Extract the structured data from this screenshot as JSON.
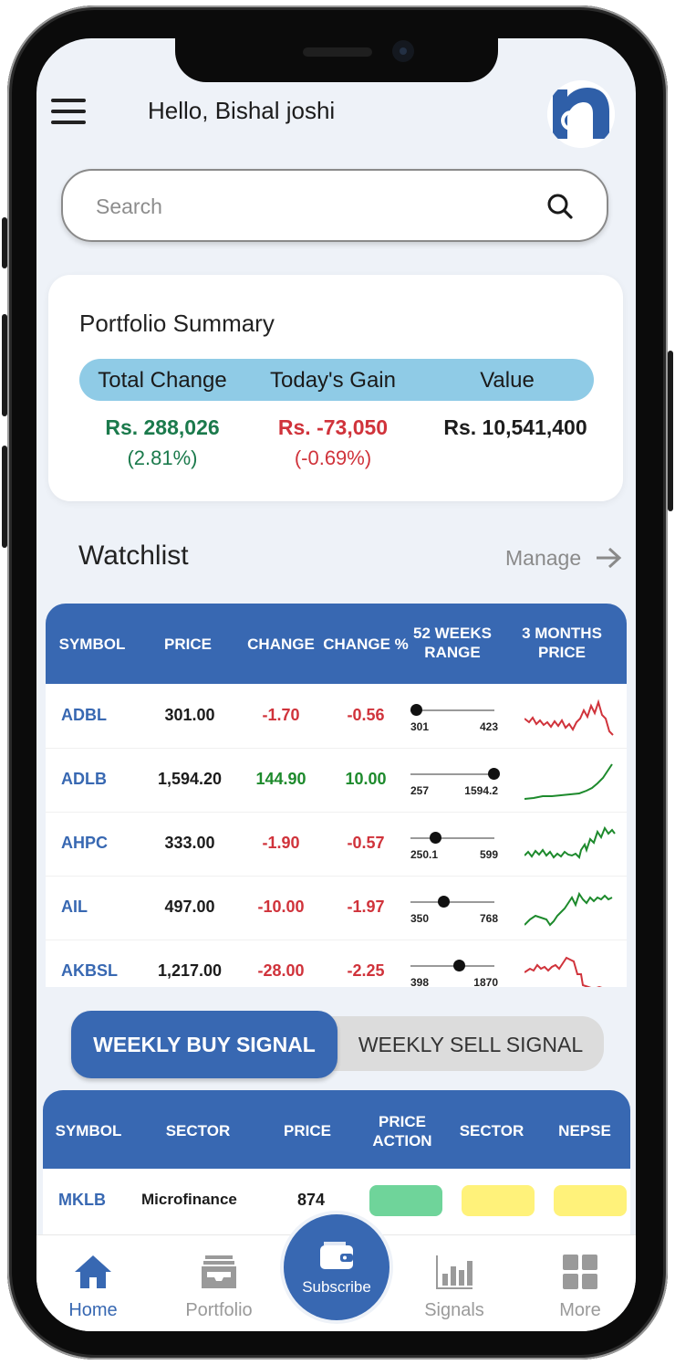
{
  "header": {
    "greeting": "Hello, Bishal joshi"
  },
  "search": {
    "placeholder": "Search"
  },
  "portfolio": {
    "title": "Portfolio Summary",
    "columns": [
      "Total Change",
      "Today's Gain",
      "Value"
    ],
    "total_change": {
      "value": "Rs. 288,026",
      "percent": "(2.81%)"
    },
    "todays_gain": {
      "value": "Rs. -73,050",
      "percent": "(-0.69%)"
    },
    "value": {
      "value": "Rs. 10,541,400"
    }
  },
  "watchlist": {
    "title": "Watchlist",
    "manage_label": "Manage",
    "headers": [
      "SYMBOL",
      "PRICE",
      "CHANGE",
      "CHANGE %",
      "52 WEEKS RANGE",
      "3 MONTHS PRICE"
    ],
    "rows": [
      {
        "symbol": "ADBL",
        "price": "301.00",
        "change": "-1.70",
        "change_pct": "-0.56",
        "low": "301",
        "high": "423",
        "trend": "down"
      },
      {
        "symbol": "ADLB",
        "price": "1,594.20",
        "change": "144.90",
        "change_pct": "10.00",
        "low": "257",
        "high": "1594.2",
        "trend": "up"
      },
      {
        "symbol": "AHPC",
        "price": "333.00",
        "change": "-1.90",
        "change_pct": "-0.57",
        "low": "250.1",
        "high": "599",
        "trend": "up"
      },
      {
        "symbol": "AIL",
        "price": "497.00",
        "change": "-10.00",
        "change_pct": "-1.97",
        "low": "350",
        "high": "768",
        "trend": "up"
      },
      {
        "symbol": "AKBSL",
        "price": "1,217.00",
        "change": "-28.00",
        "change_pct": "-2.25",
        "low": "398",
        "high": "1870",
        "trend": "down"
      }
    ]
  },
  "signals": {
    "tabs": [
      "WEEKLY BUY SIGNAL",
      "WEEKLY SELL SIGNAL"
    ],
    "headers": [
      "SYMBOL",
      "SECTOR",
      "PRICE",
      "PRICE ACTION",
      "SECTOR",
      "NEPSE"
    ],
    "rows": [
      {
        "symbol": "MKLB",
        "sector": "Microfinance",
        "price": "874",
        "price_action_color": "#6fd49a",
        "sector_color": "#fff27a",
        "nepse_color": "#fff27a"
      }
    ]
  },
  "nav": {
    "home": "Home",
    "portfolio": "Portfolio",
    "subscribe": "Subscribe",
    "signals": "Signals",
    "more": "More"
  },
  "colors": {
    "primary": "#3868b2",
    "positive": "#1d8a2c",
    "negative": "#d0333b",
    "summary_header": "#8fcbe6"
  }
}
